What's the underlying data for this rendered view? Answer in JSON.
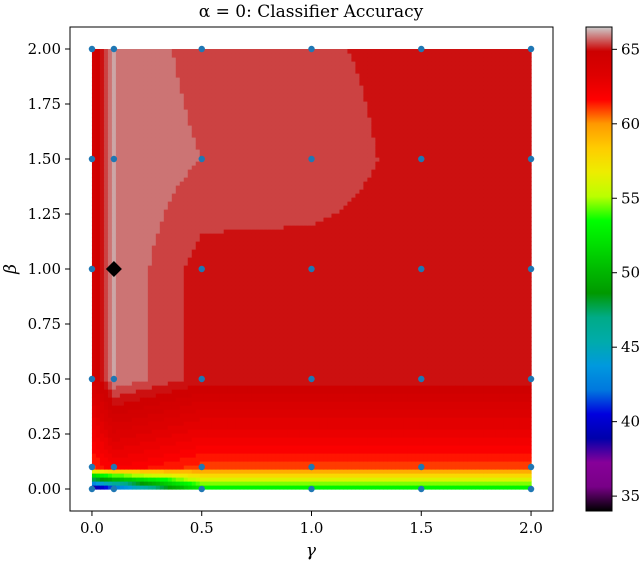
{
  "chart_data": {
    "type": "heatmap",
    "title": "α = 0: Classifier Accuracy",
    "xlabel": "γ",
    "ylabel": "β",
    "xlim": [
      -0.1,
      2.1
    ],
    "ylim": [
      -0.1,
      2.1
    ],
    "x_ticks": [
      0.0,
      0.5,
      1.0,
      1.5,
      2.0
    ],
    "x_tick_labels": [
      "0.0",
      "0.5",
      "1.0",
      "1.5",
      "2.0"
    ],
    "y_ticks": [
      0.0,
      0.25,
      0.5,
      0.75,
      1.0,
      1.25,
      1.5,
      1.75,
      2.0
    ],
    "y_tick_labels": [
      "0.00",
      "0.25",
      "0.50",
      "0.75",
      "1.00",
      "1.25",
      "1.50",
      "1.75",
      "2.00"
    ],
    "gamma_values": [
      0.0,
      0.1,
      0.5,
      1.0,
      1.5,
      2.0
    ],
    "beta_values": [
      0.0,
      0.1,
      0.5,
      1.0,
      1.5,
      2.0
    ],
    "accuracy_grid": [
      [
        36,
        40,
        52,
        52,
        52,
        52
      ],
      [
        61,
        62,
        61,
        61,
        61,
        61
      ],
      [
        64,
        66,
        65,
        65,
        65,
        65
      ],
      [
        64,
        66,
        65,
        65,
        65,
        65
      ],
      [
        64,
        66,
        65.6,
        65.5,
        65,
        65
      ],
      [
        64,
        66,
        65.4,
        65.3,
        65,
        65
      ]
    ],
    "sample_points": [
      [
        0,
        0
      ],
      [
        0.1,
        0
      ],
      [
        0.5,
        0
      ],
      [
        1,
        0
      ],
      [
        1.5,
        0
      ],
      [
        2,
        0
      ],
      [
        0,
        0.1
      ],
      [
        0.1,
        0.1
      ],
      [
        0.5,
        0.1
      ],
      [
        1,
        0.1
      ],
      [
        1.5,
        0.1
      ],
      [
        2,
        0.1
      ],
      [
        0,
        0.5
      ],
      [
        0.1,
        0.5
      ],
      [
        0.5,
        0.5
      ],
      [
        1,
        0.5
      ],
      [
        1.5,
        0.5
      ],
      [
        2,
        0.5
      ],
      [
        0,
        1
      ],
      [
        1,
        1
      ],
      [
        0.5,
        1
      ],
      [
        1.5,
        1
      ],
      [
        2,
        1
      ],
      [
        0,
        1.5
      ],
      [
        0.1,
        1.5
      ],
      [
        0.5,
        1.5
      ],
      [
        1,
        1.5
      ],
      [
        1.5,
        1.5
      ],
      [
        2,
        1.5
      ],
      [
        0,
        2
      ],
      [
        0.1,
        2
      ],
      [
        0.5,
        2
      ],
      [
        1,
        2
      ],
      [
        1.5,
        2
      ],
      [
        2,
        2
      ]
    ],
    "best_point": [
      0.1,
      1.0
    ],
    "colorbar": {
      "colormap": "nipy_spectral",
      "range": [
        34,
        66.5
      ],
      "ticks": [
        35,
        40,
        45,
        50,
        55,
        60,
        65
      ],
      "tick_labels": [
        "35",
        "40",
        "45",
        "50",
        "55",
        "60",
        "65"
      ]
    },
    "point_color": "#1f77b4",
    "best_marker_color": "#000000"
  }
}
